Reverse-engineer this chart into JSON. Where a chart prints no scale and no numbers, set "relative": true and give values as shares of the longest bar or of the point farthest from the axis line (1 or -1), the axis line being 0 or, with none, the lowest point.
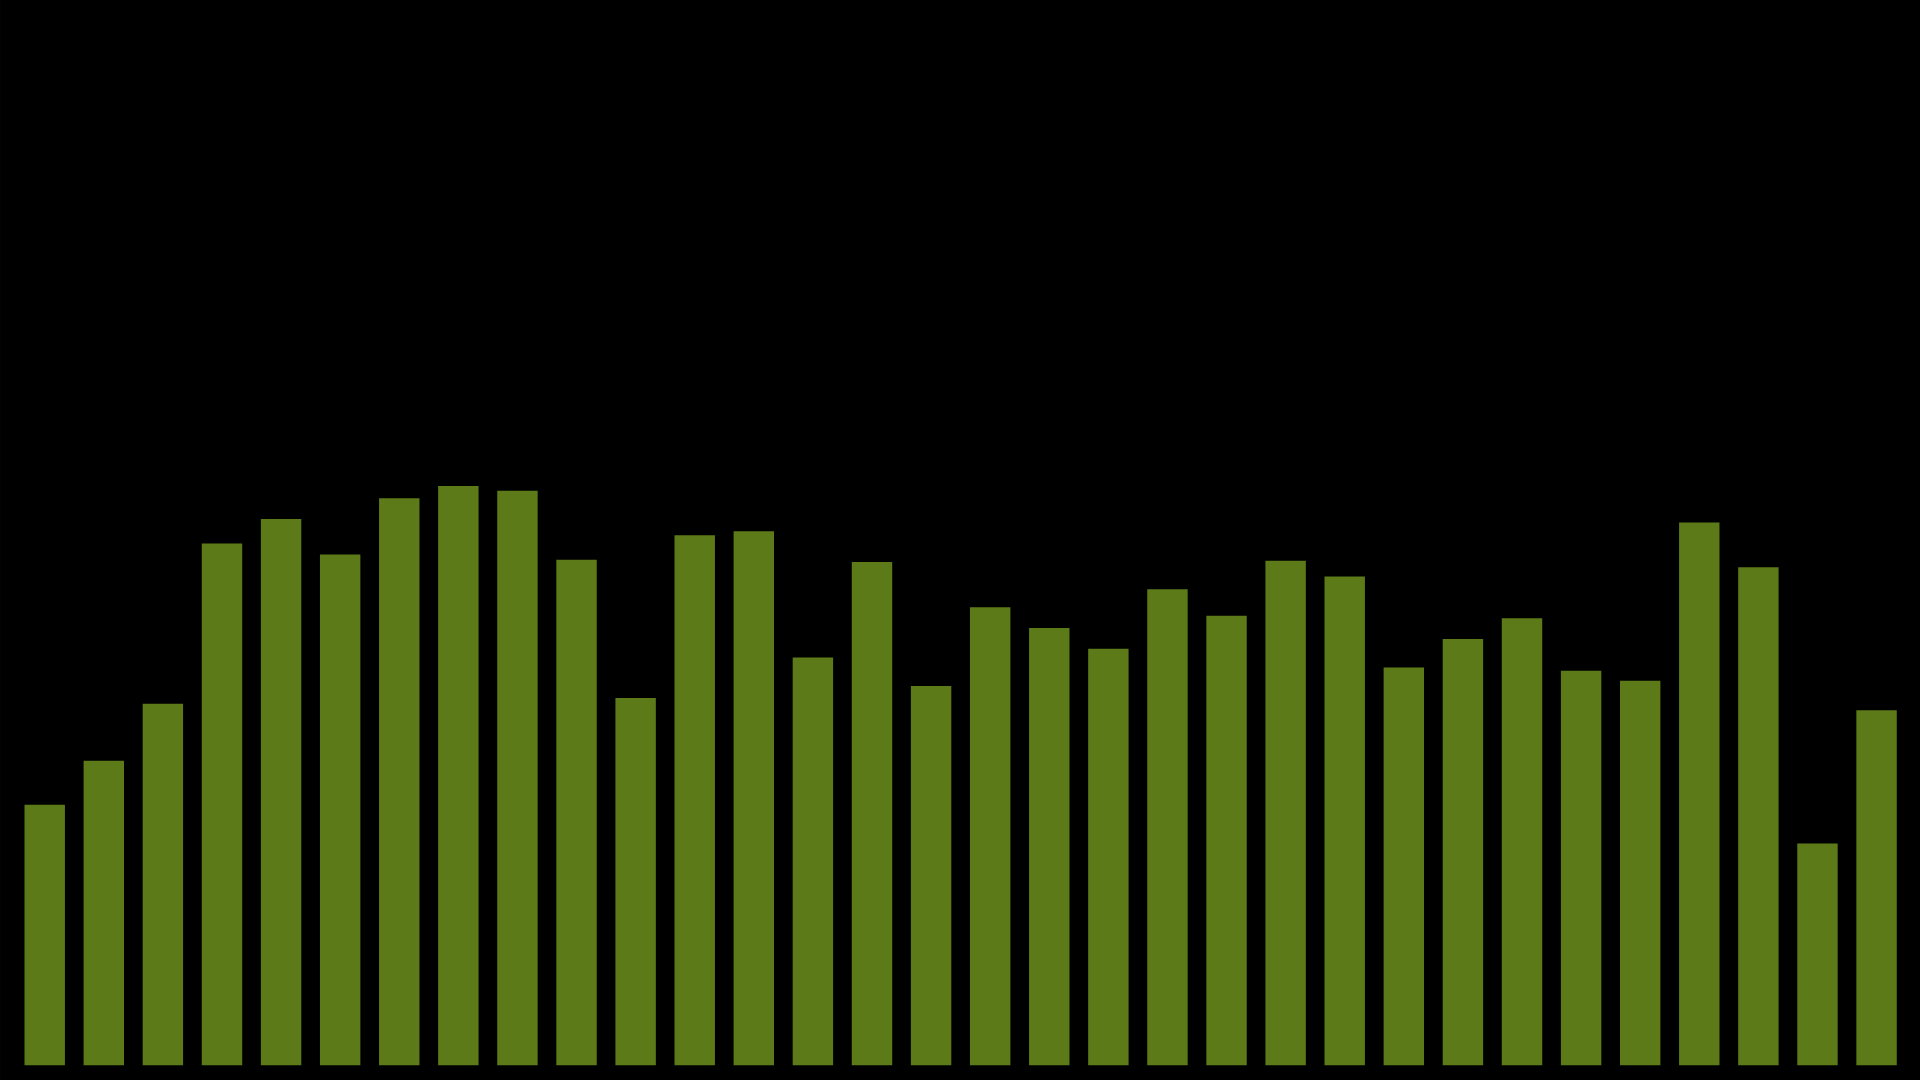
{
  "chart_data": {
    "type": "bar",
    "relative": true,
    "categories": [
      null,
      null,
      null,
      null,
      null,
      null,
      null,
      null,
      null,
      null,
      null,
      null,
      null,
      null,
      null,
      null,
      null,
      null,
      null,
      null,
      null,
      null,
      null,
      null,
      null,
      null,
      null,
      null,
      null,
      null,
      null,
      null
    ],
    "values": [
      0.45,
      0.526,
      0.624,
      0.901,
      0.943,
      0.882,
      0.979,
      1,
      0.992,
      0.873,
      0.634,
      0.915,
      0.922,
      0.704,
      0.869,
      0.655,
      0.791,
      0.755,
      0.719,
      0.822,
      0.776,
      0.871,
      0.844,
      0.687,
      0.736,
      0.772,
      0.681,
      0.664,
      0.937,
      0.86,
      0.383,
      0.613
    ],
    "color": "#5c7a18"
  }
}
